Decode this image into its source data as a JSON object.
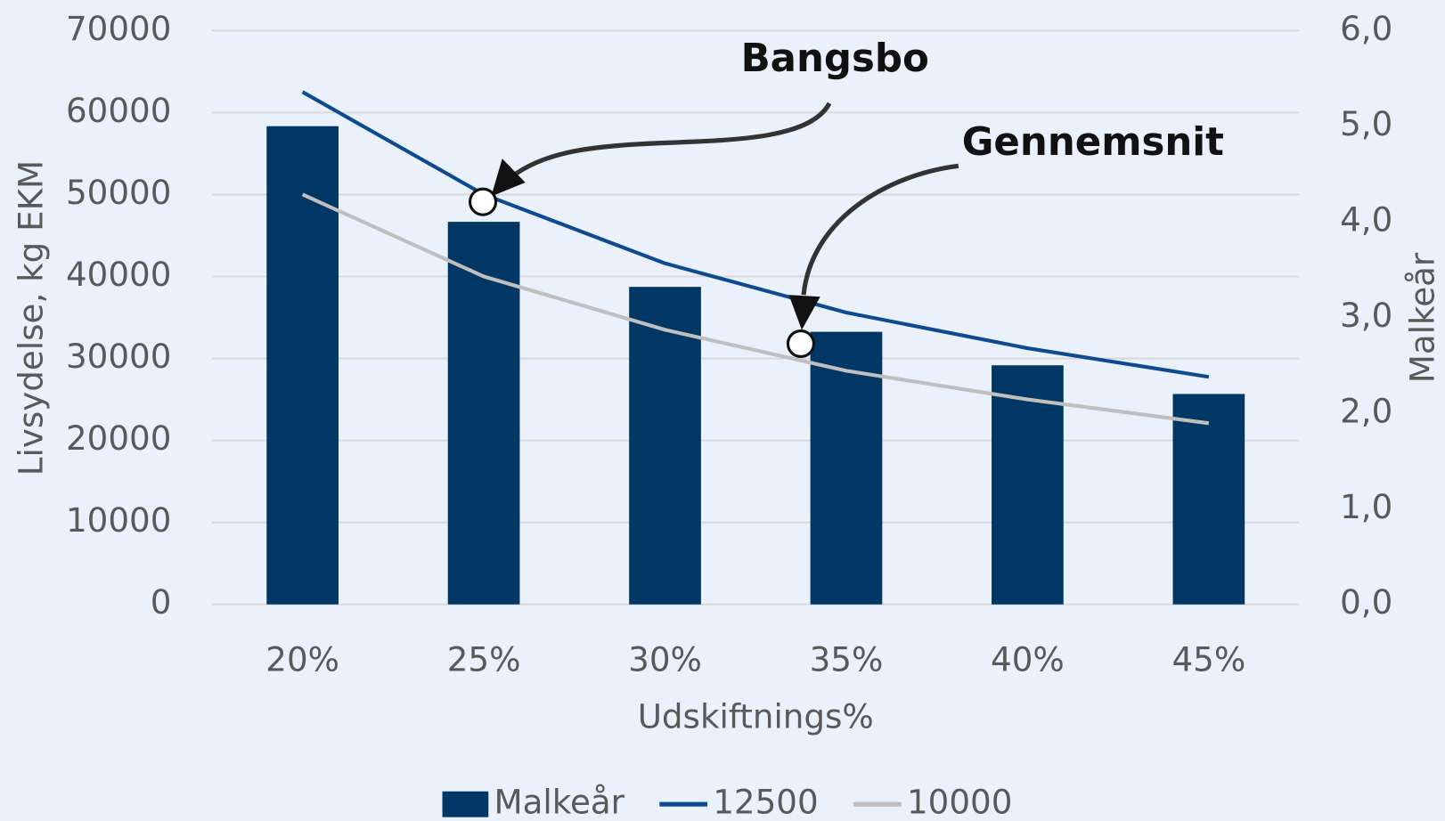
{
  "chart_data": {
    "type": "combo",
    "x_label": "Udskiftnings%",
    "y_label": "Livsydelse, kg EKM",
    "y2_label": "Malkeår",
    "categories": [
      "20%",
      "25%",
      "30%",
      "35%",
      "40%",
      "45%"
    ],
    "series": [
      {
        "name": "Malkeår",
        "type": "bar",
        "axis": "y2",
        "color": "#003764",
        "values": [
          5.0,
          4.0,
          3.32,
          2.85,
          2.5,
          2.2
        ]
      },
      {
        "name": "12500",
        "type": "line",
        "color": "#0d4a8f",
        "values": [
          62500,
          50000,
          41600,
          35600,
          31250,
          27750
        ]
      },
      {
        "name": "10000",
        "type": "line",
        "color": "#bfbfbf",
        "values": [
          50000,
          40000,
          33500,
          28500,
          25000,
          22100
        ]
      }
    ],
    "ylim": [
      0,
      70000
    ],
    "yticks": [
      0,
      10000,
      20000,
      30000,
      40000,
      50000,
      60000,
      70000
    ],
    "y2lim": [
      0,
      6
    ],
    "y2ticks": [
      {
        "value": 0,
        "label": "0,0"
      },
      {
        "value": 1,
        "label": "1,0"
      },
      {
        "value": 2,
        "label": "2,0"
      },
      {
        "value": 3,
        "label": "3,0"
      },
      {
        "value": 4,
        "label": "4,0"
      },
      {
        "value": 5,
        "label": "5,0"
      },
      {
        "value": 6,
        "label": "6,0"
      }
    ],
    "grid": true,
    "legend": "bottom",
    "annotations": [
      "Bangsbo",
      "Gennemsnit"
    ]
  }
}
